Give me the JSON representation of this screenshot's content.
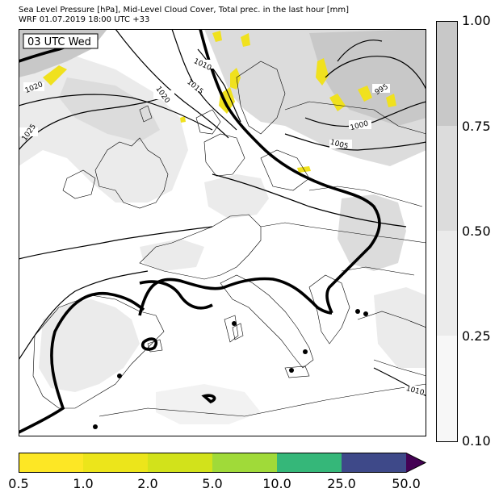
{
  "title_line1": "Sea Level Pressure [hPa], Mid-Level Cloud Cover, Total prec. in the last hour [mm]",
  "title_line2": "WRF 01.07.2019 18:00 UTC +33",
  "time_box": "03 UTC Wed",
  "isobar_labels": [
    "1020",
    "1025",
    "1010",
    "1015",
    "1020",
    "995",
    "1000",
    "1005",
    "1010"
  ],
  "cloud_colorbar": {
    "ticks": [
      "1.00",
      "0.75",
      "0.50",
      "0.25",
      "0.10"
    ],
    "colors": [
      "#c8c8c8",
      "#dcdcdc",
      "#ebebeb",
      "#f7f7f7"
    ]
  },
  "precip_colorbar": {
    "ticks": [
      "0.5",
      "1.0",
      "2.0",
      "5.0",
      "10.0",
      "25.0",
      "50.0"
    ],
    "colors": [
      "#fde725",
      "#ece51b",
      "#d2e21b",
      "#a0da39",
      "#35b779",
      "#31688e",
      "#3e4989",
      "#440154"
    ]
  }
}
